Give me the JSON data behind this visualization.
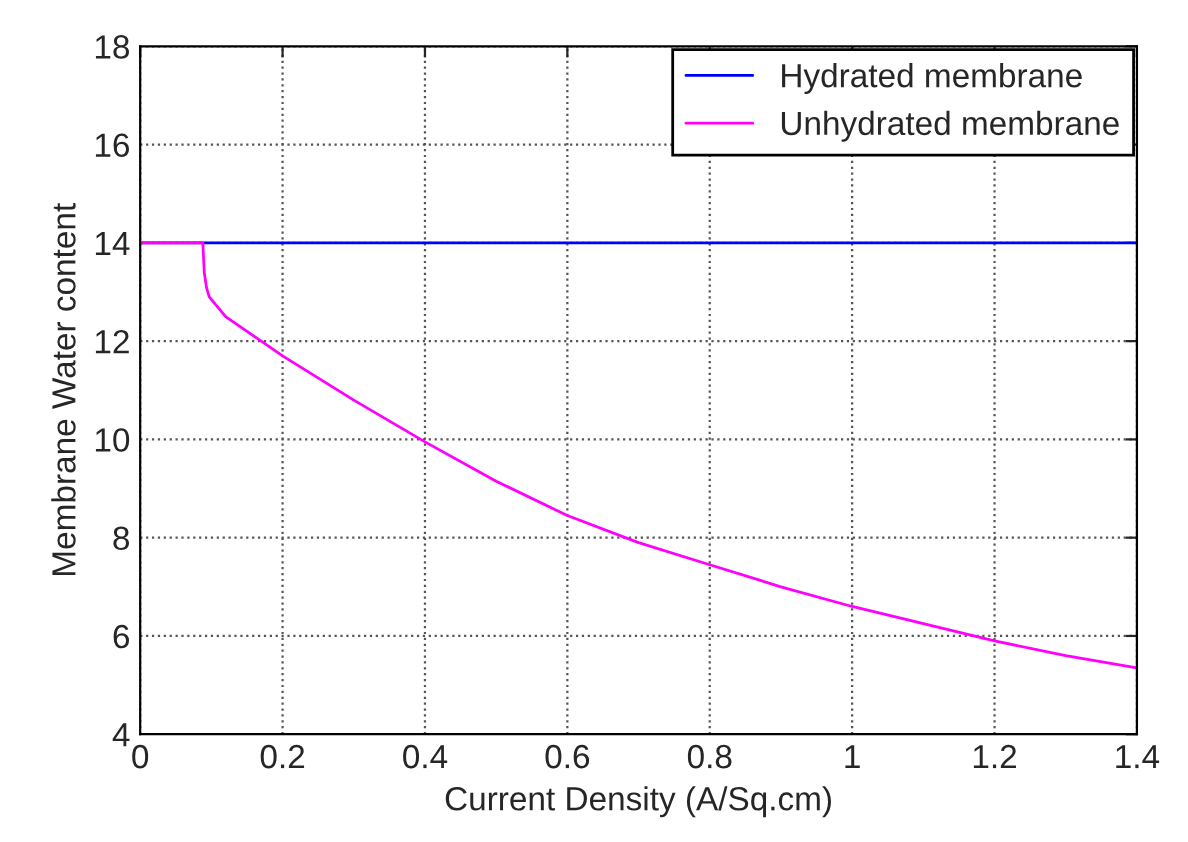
{
  "chart_data": {
    "type": "line",
    "xlabel": "Current Density (A/Sq.cm)",
    "ylabel": "Membrane Water content",
    "xlim": [
      0,
      1.4
    ],
    "ylim": [
      4,
      18
    ],
    "xticks": [
      0,
      0.2,
      0.4,
      0.6,
      0.8,
      1,
      1.2,
      1.4
    ],
    "yticks": [
      4,
      6,
      8,
      10,
      12,
      14,
      16,
      18
    ],
    "grid": true,
    "legend": "top right",
    "series": [
      {
        "name": "Hydrated membrane",
        "color": "#0000ff",
        "x": [
          0,
          1.4
        ],
        "values": [
          14,
          14
        ]
      },
      {
        "name": "Unhydrated membrane",
        "color": "#ff00ff",
        "x": [
          0,
          0.088,
          0.09,
          0.093,
          0.097,
          0.12,
          0.15,
          0.2,
          0.3,
          0.4,
          0.5,
          0.6,
          0.7,
          0.8,
          0.9,
          1.0,
          1.1,
          1.2,
          1.3,
          1.4
        ],
        "values": [
          14,
          14,
          13.4,
          13.1,
          12.9,
          12.5,
          12.2,
          11.7,
          10.8,
          9.95,
          9.15,
          8.45,
          7.9,
          7.45,
          7.0,
          6.6,
          6.25,
          5.9,
          5.6,
          5.35
        ]
      }
    ]
  }
}
